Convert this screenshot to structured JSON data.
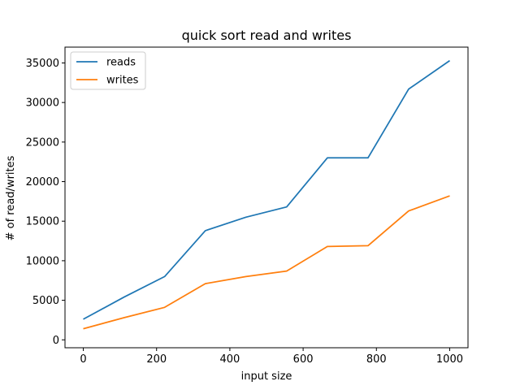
{
  "chart_data": {
    "type": "line",
    "title": "quick sort read and writes",
    "xlabel": "input size",
    "ylabel": "# of read/writes",
    "xlim": [
      -50,
      1050
    ],
    "ylim": [
      -1000,
      37000
    ],
    "xticks": [
      0,
      200,
      400,
      600,
      800,
      1000
    ],
    "yticks": [
      0,
      5000,
      10000,
      15000,
      20000,
      25000,
      30000,
      35000
    ],
    "grid": false,
    "legend_position": "top-left",
    "x": [
      0,
      111,
      222,
      333,
      444,
      555,
      666,
      777,
      888,
      1000
    ],
    "series": [
      {
        "name": "reads",
        "color": "#1f77b4",
        "values": [
          2600,
          5400,
          8000,
          13800,
          15500,
          16800,
          23000,
          23000,
          31700,
          35300
        ]
      },
      {
        "name": "writes",
        "color": "#ff7f0e",
        "values": [
          1400,
          2800,
          4100,
          7100,
          8000,
          8700,
          11800,
          11900,
          16300,
          18200
        ]
      }
    ]
  }
}
